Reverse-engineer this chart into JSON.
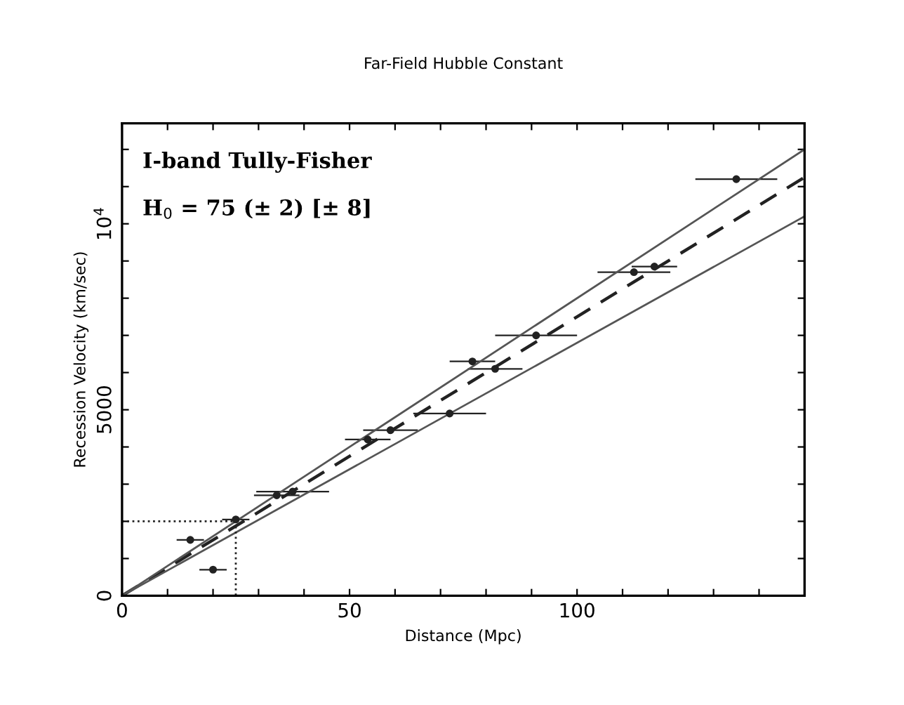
{
  "chart_data": {
    "type": "scatter",
    "title": "Far-Field Hubble Constant",
    "xlabel": "Distance (Mpc)",
    "ylabel": "Recession Velocity (km/sec)",
    "annotations": [
      "I-band Tully-Fisher",
      "H$_{0}$ = 75 (± 2) [± 8]"
    ],
    "xlim": [
      0,
      150
    ],
    "ylim": [
      0,
      12700
    ],
    "xticks": [
      0,
      {
        "value": 10,
        "label": null
      },
      {
        "value": 20,
        "label": null
      },
      {
        "value": 30,
        "label": null
      },
      {
        "value": 40,
        "label": null
      },
      50,
      {
        "value": 60,
        "label": null
      },
      {
        "value": 70,
        "label": null
      },
      {
        "value": 80,
        "label": null
      },
      {
        "value": 90,
        "label": null
      },
      100,
      {
        "value": 110,
        "label": null
      },
      {
        "value": 120,
        "label": null
      },
      {
        "value": 130,
        "label": null
      },
      {
        "value": 140,
        "label": null
      }
    ],
    "yticks": [
      0,
      {
        "value": 1000,
        "label": null
      },
      {
        "value": 2000,
        "label": null
      },
      {
        "value": 3000,
        "label": null
      },
      {
        "value": 4000,
        "label": null
      },
      5000,
      {
        "value": 6000,
        "label": null
      },
      {
        "value": 7000,
        "label": null
      },
      {
        "value": 8000,
        "label": null
      },
      {
        "value": 9000,
        "label": null
      },
      {
        "value": 10000,
        "label": "10$^{4}$"
      },
      {
        "value": 11000,
        "label": null
      },
      {
        "value": 12000,
        "label": null
      }
    ],
    "grid": false,
    "legend": false,
    "series": [
      {
        "color": "#222222",
        "marker": "circle",
        "x": [
          135,
          112.5,
          117,
          91,
          82,
          77,
          72,
          59,
          54,
          37.5,
          34,
          25,
          15,
          20
        ],
        "values": [
          11200,
          8700,
          8850,
          7000,
          6100,
          6300,
          4900,
          4450,
          4200,
          2800,
          2700,
          2050,
          1500,
          700
        ],
        "xerrors": [
          9,
          8,
          5,
          9,
          6,
          5,
          8,
          6,
          5,
          8,
          5,
          3,
          3,
          3
        ]
      },
      {
        "type": "line",
        "color": "#222222",
        "line_style": "dashed",
        "x": [
          0,
          150
        ],
        "values": [
          0,
          11250
        ]
      },
      {
        "type": "line",
        "color": "#555555",
        "line_style": "solid",
        "x": [
          0,
          150
        ],
        "values": [
          0,
          12000
        ]
      },
      {
        "type": "line",
        "color": "#555555",
        "line_style": "solid",
        "x": [
          0,
          150
        ],
        "values": [
          0,
          10200
        ]
      },
      {
        "type": "line",
        "color": "#222222",
        "line_style": "dotted",
        "x": [
          0,
          25,
          25
        ],
        "values": [
          2000,
          2000,
          0
        ]
      }
    ]
  }
}
